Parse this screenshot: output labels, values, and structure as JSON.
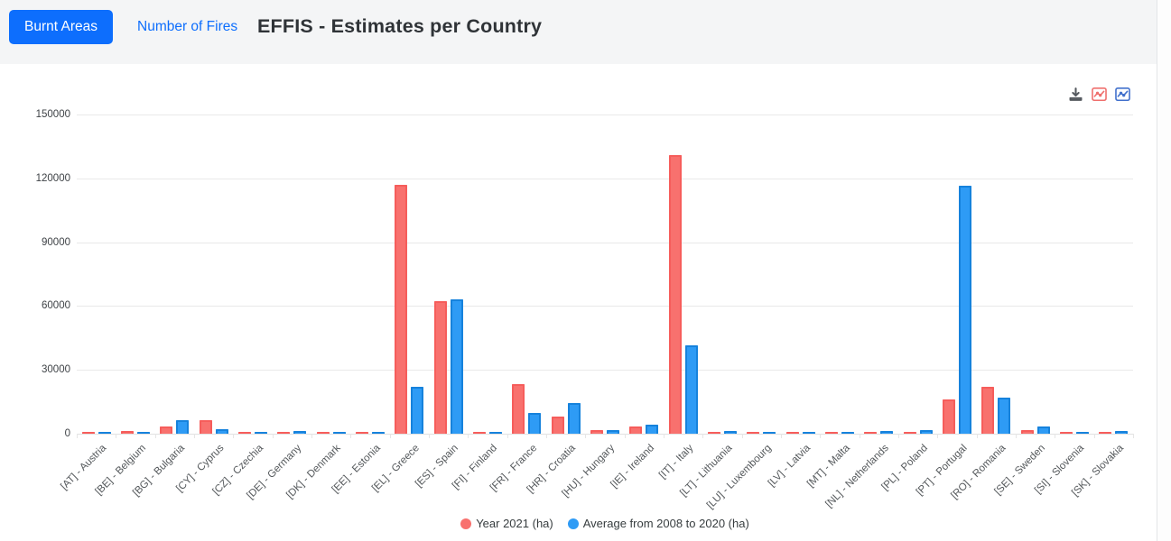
{
  "header": {
    "tabs": [
      {
        "label": "Burnt Areas",
        "active": true
      },
      {
        "label": "Number of Fires",
        "active": false
      }
    ],
    "title": "EFFIS - Estimates per Country"
  },
  "toolbar": {
    "icons": [
      {
        "name": "download-icon",
        "color": "#55595f"
      },
      {
        "name": "line-chart-red-icon",
        "color": "#ef6f6d"
      },
      {
        "name": "line-chart-blue-icon",
        "color": "#4170cc"
      }
    ]
  },
  "colors": {
    "accent": "#0d6efd",
    "series_2021_fill": "#F8716E",
    "series_2021_border": "#F65D5B",
    "series_avg_fill": "#2E9BF5",
    "series_avg_border": "#1682DC",
    "grid": "#e9e9e9"
  },
  "chart_data": {
    "type": "bar",
    "title": "EFFIS - Estimates per Country",
    "categories": [
      "[AT] - Austria",
      "[BE] - Belgium",
      "[BG] - Bulgaria",
      "[CY] - Cyprus",
      "[CZ] - Czechia",
      "[DE] - Germany",
      "[DK] - Denmark",
      "[EE] - Estonia",
      "[EL] - Greece",
      "[ES] - Spain",
      "[FI] - Finland",
      "[FR] - France",
      "[HR] - Croatia",
      "[HU] - Hungary",
      "[IE] - Ireland",
      "[IT] - Italy",
      "[LT] - Lithuania",
      "[LU] - Luxembourg",
      "[LV] - Latvia",
      "[MT] - Malta",
      "[NL] - Netherlands",
      "[PL] - Poland",
      "[PT] - Portugal",
      "[RO] - Romania",
      "[SE] - Sweden",
      "[SI] - Slovenia",
      "[SK] - Slovakia"
    ],
    "series": [
      {
        "name": "Year 2021 (ha)",
        "color": "#F8716E",
        "values": [
          800,
          1200,
          3300,
          6300,
          600,
          800,
          600,
          700,
          117000,
          62300,
          900,
          23300,
          8200,
          1700,
          3200,
          131000,
          700,
          500,
          900,
          600,
          700,
          800,
          16300,
          21900,
          1500,
          800,
          800
        ]
      },
      {
        "name": "Average from 2008 to 2020 (ha)",
        "color": "#2E9BF5",
        "values": [
          900,
          900,
          6400,
          2100,
          700,
          1100,
          500,
          1000,
          22000,
          63300,
          700,
          9900,
          14500,
          1500,
          4400,
          41500,
          1100,
          600,
          1000,
          1000,
          1200,
          1700,
          116600,
          16900,
          3600,
          700,
          1200
        ]
      }
    ],
    "xlabel": "",
    "ylabel": "",
    "ylim": [
      0,
      150000
    ],
    "yticks": [
      0,
      30000,
      60000,
      90000,
      120000,
      150000
    ],
    "grid": true,
    "legend_position": "bottom"
  }
}
